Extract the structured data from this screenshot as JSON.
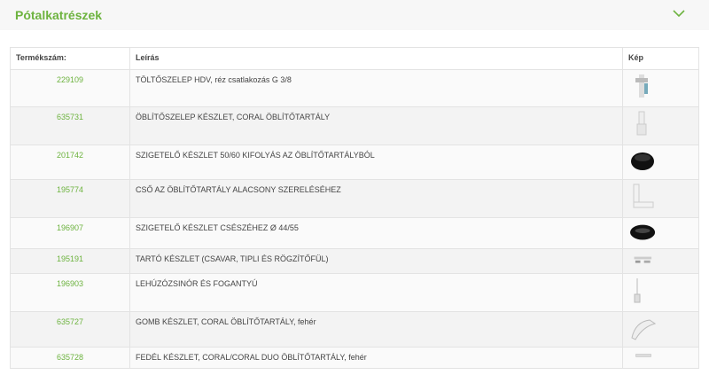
{
  "section": {
    "title": "Pótalkatrészek",
    "toggle_icon": "chevron-down-icon",
    "accent": "#6db33f"
  },
  "table": {
    "headers": [
      "Termékszám:",
      "Leírás",
      "Kép"
    ],
    "rows": [
      {
        "num": "229109",
        "desc": "TÖLTŐSZELEP HDV, réz csatlakozás G 3/8",
        "img": "fill-valve",
        "h": 42
      },
      {
        "num": "635731",
        "desc": "ÖBLÍTŐSZELEP KÉSZLET, CORAL ÖBLÍTŐTARTÁLY",
        "img": "flush-valve",
        "h": 43
      },
      {
        "num": "201742",
        "desc": "SZIGETELŐ KÉSZLET 50/60 KIFOLYÁS AZ ÖBLÍTŐTARTÁLYBÓL",
        "img": "seal-black",
        "h": 39
      },
      {
        "num": "195774",
        "desc": "CSŐ AZ ÖBLÍTŐTARTÁLY ALACSONY SZERELÉSÉHEZ",
        "img": "pipe",
        "h": 43
      },
      {
        "num": "196907",
        "desc": "SZIGETELŐ KÉSZLET CSÉSZÉHEZ Ø 44/55",
        "img": "seal-ring",
        "h": 34
      },
      {
        "num": "195191",
        "desc": "TARTÓ KÉSZLET (CSAVAR, TIPLI ÉS RÖGZÍTŐFÜL)",
        "img": "screws",
        "h": 27
      },
      {
        "num": "196903",
        "desc": "LEHÚZÓZSINÓR ÉS FOGANTYÚ",
        "img": "pull-cord",
        "h": 43
      },
      {
        "num": "635727",
        "desc": "GOMB KÉSZLET, CORAL ÖBLÍTŐTARTÁLY, fehér",
        "img": "button",
        "h": 40
      },
      {
        "num": "635728",
        "desc": "FEDÉL KÉSZLET, CORAL/CORAL DUO ÖBLÍTŐTARTÁLY, fehér",
        "img": "lid",
        "h": 23
      }
    ]
  }
}
